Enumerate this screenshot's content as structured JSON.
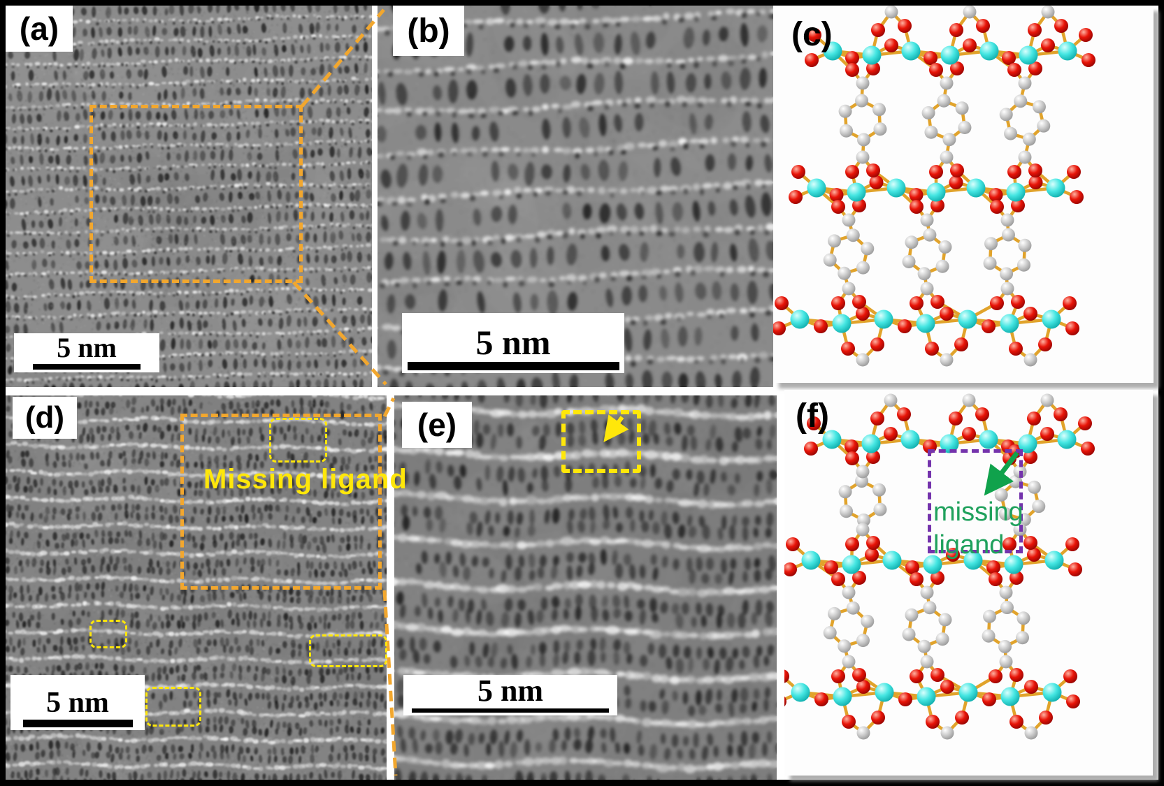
{
  "panels": {
    "a": {
      "label": "(a)",
      "scalebar": "5 nm"
    },
    "b": {
      "label": "(b)",
      "scalebar": "5 nm"
    },
    "c": {
      "label": "(c)"
    },
    "d": {
      "label": "(d)",
      "scalebar": "5 nm",
      "annotation": "Missing ligand"
    },
    "e": {
      "label": "(e)",
      "scalebar": "5 nm"
    },
    "f": {
      "label": "(f)",
      "annotation_line1": "missing",
      "annotation_line2": "ligand"
    }
  },
  "colors": {
    "frame": "#000000",
    "panel_background": "#ffffff",
    "highlight_orange": "#F2A72E",
    "annotation_yellow": "#FFE70A",
    "box_purple": "#7433AC",
    "missing_text_green": "#1FA15C",
    "arrow_green": "#10A24C",
    "metal_cyan": "#45E6E2",
    "oxygen_red": "#E81408",
    "carbon_gray": "#CDCDCD",
    "bond_gold": "#E1A32B"
  },
  "molecule": {
    "description": "metal-organic framework fragment: horizontal metal-oxo chains bridged by benzene-dicarboxylate ligands",
    "atom_legend": {
      "cyan": "metal",
      "red": "oxygen",
      "gray": "carbon"
    },
    "defect_panel": "f"
  }
}
